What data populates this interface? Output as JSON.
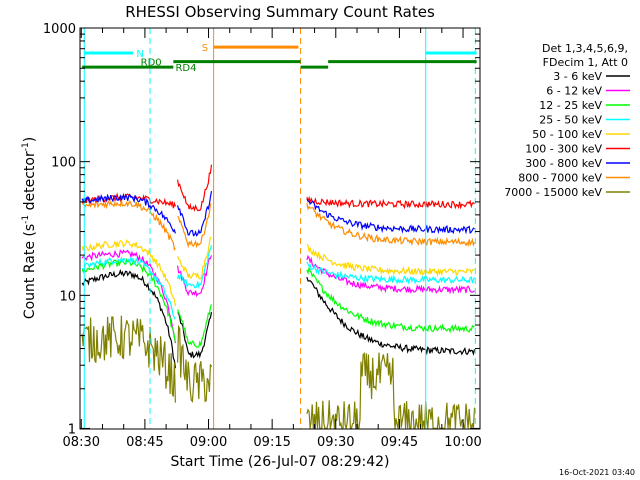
{
  "chart_data": {
    "type": "line",
    "title": "RHESSI Observing Summary Count Rates",
    "xlabel": "Start Time (26-Jul-07 08:29:42)",
    "ylabel_parts": [
      "Count Rate (s",
      "-1",
      " detector",
      "-1",
      ")"
    ],
    "ylim": [
      1,
      1000
    ],
    "yscale": "log",
    "ytick_labels": [
      "1",
      "10",
      "100",
      "1000"
    ],
    "ytick_values": [
      1,
      10,
      100,
      1000
    ],
    "xlim_min": [
      0,
      94.3
    ],
    "xtick_labels": [
      "08:30",
      "08:45",
      "09:00",
      "09:15",
      "09:30",
      "09:45",
      "10:00"
    ],
    "xtick_minutes": [
      0.3,
      15.3,
      30.3,
      45.3,
      60.3,
      75.3,
      90.3
    ],
    "legend_header": [
      "Det 1,3,4,5,6,9,",
      "FDecim 1, Att 0"
    ],
    "timestamp": "16-Oct-2021 03:40",
    "series": [
      {
        "name": "3 - 6 keV",
        "color": "#000000",
        "seg1": [
          12,
          14.5,
          2.8
        ],
        "seg2": [
          7.5,
          3.6
        ],
        "seg3": [
          14,
          3.8
        ]
      },
      {
        "name": "6 - 12 keV",
        "color": "#ff00ff",
        "seg1": [
          19,
          20.5,
          4.5
        ],
        "seg2": [
          16,
          10.5
        ],
        "seg3": [
          19,
          11
        ]
      },
      {
        "name": "12 - 25 keV",
        "color": "#00ff00",
        "seg1": [
          15,
          17.5,
          4.3
        ],
        "seg2": [
          8,
          4.3
        ],
        "seg3": [
          16,
          5.6
        ]
      },
      {
        "name": "25 - 50 keV",
        "color": "#00ffff",
        "seg1": [
          16,
          18.5,
          6.5
        ],
        "seg2": [
          14,
          12
        ],
        "seg3": [
          17,
          13
        ]
      },
      {
        "name": "50 - 100 keV",
        "color": "#ffd700",
        "seg1": [
          22,
          24.5,
          8.5
        ],
        "seg2": [
          19,
          14
        ],
        "seg3": [
          23,
          15
        ]
      },
      {
        "name": "100 - 300 keV",
        "color": "#ff0000",
        "seg1": [
          50,
          54,
          47
        ],
        "seg2": [
          72,
          45
        ],
        "seg3": [
          52,
          48
        ]
      },
      {
        "name": "300 - 800 keV",
        "color": "#0000ff",
        "seg1": [
          50,
          54,
          30
        ],
        "seg2": [
          48,
          29
        ],
        "seg3": [
          52,
          31
        ]
      },
      {
        "name": "800 - 7000 keV",
        "color": "#ff8c00",
        "seg1": [
          46,
          49,
          22
        ],
        "seg2": [
          38,
          24.5
        ],
        "seg3": [
          48,
          25
        ]
      },
      {
        "name": "7000 - 15000 keV",
        "color": "#808000",
        "seg1": [
          4.5,
          4.8,
          2.2
        ],
        "seg2": [
          4.2,
          2.2
        ],
        "seg3": [
          1.2,
          1.1
        ]
      }
    ],
    "annotations": {
      "N": {
        "label": "N",
        "color": "#00ffff",
        "y": 650
      },
      "RD0": {
        "label": "RD0",
        "color": "#008000",
        "y": 560
      },
      "RD4": {
        "label": "RD4",
        "color": "#008000",
        "y": 510
      },
      "S": {
        "label": "S",
        "color": "#ff8c00",
        "y": 720
      }
    }
  }
}
